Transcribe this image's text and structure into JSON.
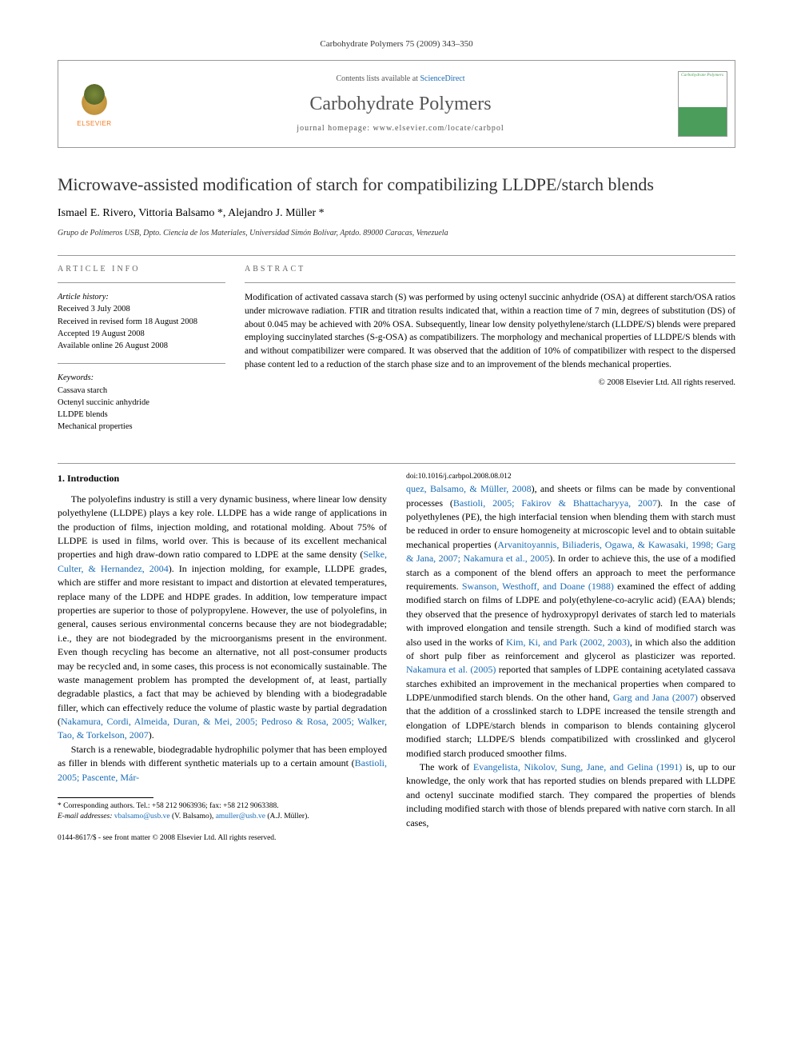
{
  "journal_ref": "Carbohydrate Polymers 75 (2009) 343–350",
  "header": {
    "contents_prefix": "Contents lists available at ",
    "contents_link": "ScienceDirect",
    "journal_name": "Carbohydrate Polymers",
    "homepage_label": "journal homepage: www.elsevier.com/locate/carbpol",
    "publisher": "ELSEVIER",
    "cover_label": "Carbohydrate Polymers"
  },
  "title": "Microwave-assisted modification of starch for compatibilizing LLDPE/starch blends",
  "authors": "Ismael E. Rivero, Vittoria Balsamo *, Alejandro J. Müller *",
  "affiliation": "Grupo de Polímeros USB, Dpto. Ciencia de los Materiales, Universidad Simón Bolívar, Aptdo. 89000 Caracas, Venezuela",
  "info": {
    "head": "ARTICLE INFO",
    "history_label": "Article history:",
    "received": "Received 3 July 2008",
    "revised": "Received in revised form 18 August 2008",
    "accepted": "Accepted 19 August 2008",
    "online": "Available online 26 August 2008",
    "keywords_label": "Keywords:",
    "kw1": "Cassava starch",
    "kw2": "Octenyl succinic anhydride",
    "kw3": "LLDPE blends",
    "kw4": "Mechanical properties"
  },
  "abstract": {
    "head": "ABSTRACT",
    "text": "Modification of activated cassava starch (S) was performed by using octenyl succinic anhydride (OSA) at different starch/OSA ratios under microwave radiation. FTIR and titration results indicated that, within a reaction time of 7 min, degrees of substitution (DS) of about 0.045 may be achieved with 20% OSA. Subsequently, linear low density polyethylene/starch (LLDPE/S) blends were prepared employing succinylated starches (S-g-OSA) as compatibilizers. The morphology and mechanical properties of LLDPE/S blends with and without compatibilizer were compared. It was observed that the addition of 10% of compatibilizer with respect to the dispersed phase content led to a reduction of the starch phase size and to an improvement of the blends mechanical properties.",
    "copyright": "© 2008 Elsevier Ltd. All rights reserved."
  },
  "body": {
    "heading": "1. Introduction",
    "p1a": "The polyolefins industry is still a very dynamic business, where linear low density polyethylene (LLDPE) plays a key role. LLDPE has a wide range of applications in the production of films, injection molding, and rotational molding. About 75% of LLDPE is used in films, world over. This is because of its excellent mechanical properties and high draw-down ratio compared to LDPE at the same density (",
    "p1r1": "Selke, Culter, & Hernandez, 2004",
    "p1b": "). In injection molding, for example, LLDPE grades, which are stiffer and more resistant to impact and distortion at elevated temperatures, replace many of the LDPE and HDPE grades. In addition, low temperature impact properties are superior to those of polypropylene. However, the use of polyolefins, in general, causes serious environmental concerns because they are not biodegradable; i.e., they are not biodegraded by the microorganisms present in the environment. Even though recycling has become an alternative, not all post-consumer products may be recycled and, in some cases, this process is not economically sustainable. The waste management problem has prompted the development of, at least, partially degradable plastics, a fact that may be achieved by blending with a biodegradable filler, which can effectively reduce the volume of plastic waste by partial degradation (",
    "p1r2": "Nakamura, Cordi, Almeida, Duran, & Mei, 2005; Pedroso & Rosa, 2005; Walker, Tao, & Torkelson, 2007",
    "p1c": ").",
    "p2a": "Starch is a renewable, biodegradable hydrophilic polymer that has been employed as filler in blends with different synthetic materials up to a certain amount (",
    "p2r1": "Bastioli, 2005; Pascente, Már-",
    "p3r1": "quez, Balsamo, & Müller, 2008",
    "p3a": "), and sheets or films can be made by conventional processes (",
    "p3r2": "Bastioli, 2005; Fakirov & Bhattacharyya, 2007",
    "p3b": "). In the case of polyethylenes (PE), the high interfacial tension when blending them with starch must be reduced in order to ensure homogeneity at microscopic level and to obtain suitable mechanical properties (",
    "p3r3": "Arvanitoyannis, Biliaderis, Ogawa, & Kawasaki, 1998; Garg & Jana, 2007; Nakamura et al., 2005",
    "p3c": "). In order to achieve this, the use of a modified starch as a component of the blend offers an approach to meet the performance requirements. ",
    "p3r4": "Swanson, Westhoff, and Doane (1988)",
    "p3d": " examined the effect of adding modified starch on films of LDPE and poly(ethylene-co-acrylic acid) (EAA) blends; they observed that the presence of hydroxypropyl derivates of starch led to materials with improved elongation and tensile strength. Such a kind of modified starch was also used in the works of ",
    "p3r5": "Kim, Ki, and Park (2002, 2003)",
    "p3e": ", in which also the addition of short pulp fiber as reinforcement and glycerol as plasticizer was reported. ",
    "p3r6": "Nakamura et al. (2005)",
    "p3f": " reported that samples of LDPE containing acetylated cassava starches exhibited an improvement in the mechanical properties when compared to LDPE/unmodified starch blends. On the other hand, ",
    "p3r7": "Garg and Jana (2007)",
    "p3g": " observed that the addition of a crosslinked starch to LDPE increased the tensile strength and elongation of LDPE/starch blends in comparison to blends containing glycerol modified starch; LLDPE/S blends compatibilized with crosslinked and glycerol modified starch produced smoother films.",
    "p4a": "The work of ",
    "p4r1": "Evangelista, Nikolov, Sung, Jane, and Gelina (1991)",
    "p4b": " is, up to our knowledge, the only work that has reported studies on blends prepared with LLDPE and octenyl succinate modified starch. They compared the properties of blends including modified starch with those of blends prepared with native corn starch. In all cases,"
  },
  "footnote": {
    "corr": "* Corresponding authors. Tel.: +58 212 9063936; fax: +58 212 9063388.",
    "email_label": "E-mail addresses:",
    "email1": "vbalsamo@usb.ve",
    "email1_name": " (V. Balsamo), ",
    "email2": "amuller@usb.ve",
    "email2_name": " (A.J. Müller)."
  },
  "footer": {
    "issn": "0144-8617/$ - see front matter © 2008 Elsevier Ltd. All rights reserved.",
    "doi": "doi:10.1016/j.carbpol.2008.08.012"
  }
}
